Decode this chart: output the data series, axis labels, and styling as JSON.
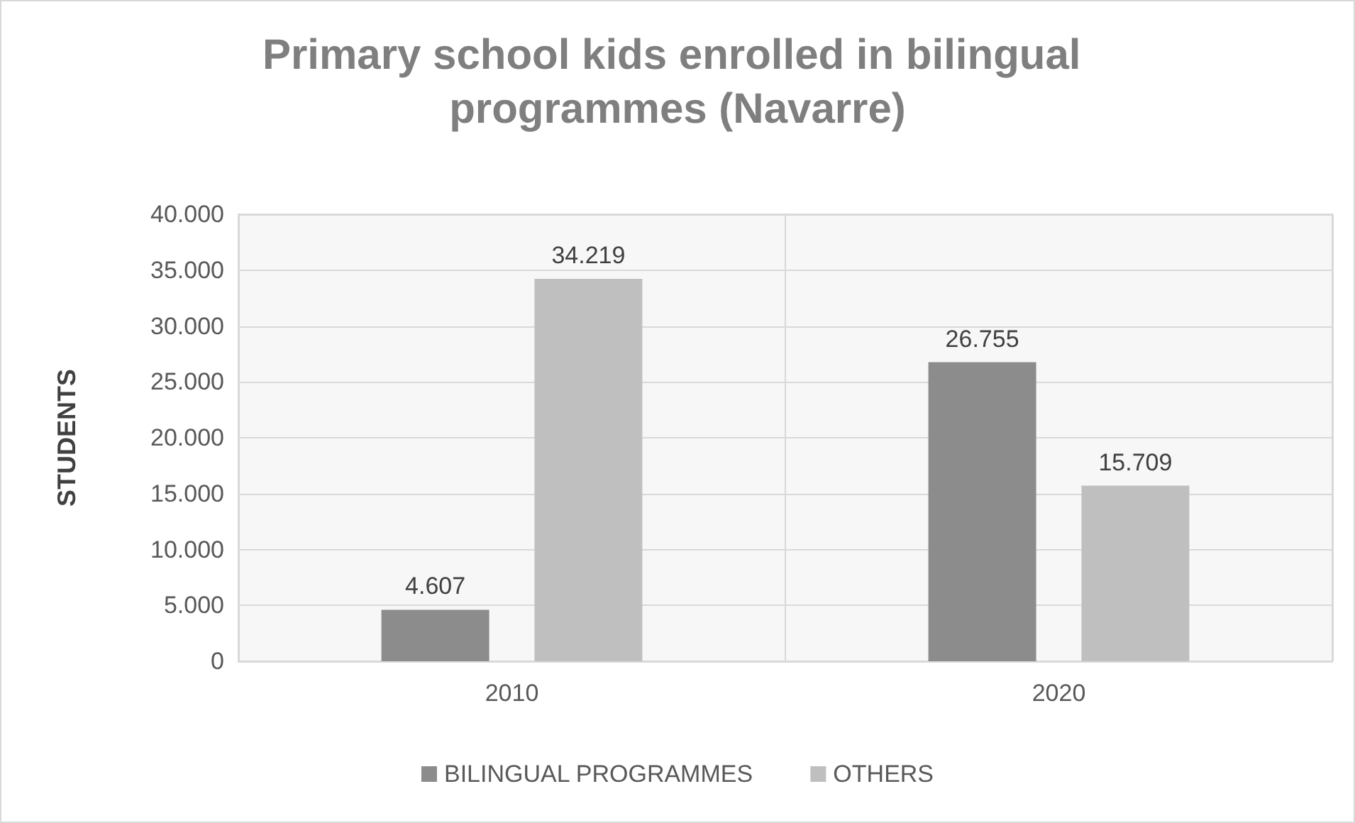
{
  "chart_data": {
    "type": "bar",
    "title": "Primary school kids enrolled in bilingual programmes (Navarre)",
    "ylabel": "STUDENTS",
    "categories": [
      "2010",
      "2020"
    ],
    "series": [
      {
        "name": "BILINGUAL PROGRAMMES",
        "color": "#8c8c8c",
        "values": [
          4607,
          26755
        ],
        "value_labels": [
          "4.607",
          "26.755"
        ]
      },
      {
        "name": "OTHERS",
        "color": "#bfbfbf",
        "values": [
          34219,
          15709
        ],
        "value_labels": [
          "34.219",
          "15.709"
        ]
      }
    ],
    "ylim": [
      0,
      40000
    ],
    "yticks": [
      {
        "value": 0,
        "label": "0"
      },
      {
        "value": 5000,
        "label": "5.000"
      },
      {
        "value": 10000,
        "label": "10.000"
      },
      {
        "value": 15000,
        "label": "15.000"
      },
      {
        "value": 20000,
        "label": "20.000"
      },
      {
        "value": 25000,
        "label": "25.000"
      },
      {
        "value": 30000,
        "label": "30.000"
      },
      {
        "value": 35000,
        "label": "35.000"
      },
      {
        "value": 40000,
        "label": "40.000"
      }
    ],
    "grid": true,
    "legend": "bottom"
  }
}
